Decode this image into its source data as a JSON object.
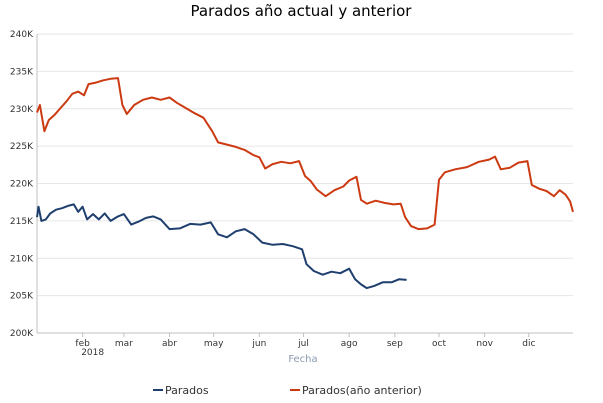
{
  "chart_data": {
    "type": "line",
    "title": "Parados año actual y anterior",
    "xlabel": "Fecha",
    "ylabel": "",
    "ylim": [
      200000,
      240000
    ],
    "yticks": [
      200000,
      205000,
      210000,
      215000,
      220000,
      225000,
      230000,
      235000,
      240000
    ],
    "ytick_labels": [
      "200K",
      "205K",
      "210K",
      "215K",
      "220K",
      "225K",
      "230K",
      "235K",
      "240K"
    ],
    "xlim": [
      "2018-01-01",
      "2018-12-31"
    ],
    "xticks": [
      {
        "date": "2018-02-01",
        "label": "feb",
        "sublabel": "2018"
      },
      {
        "date": "2018-03-01",
        "label": "mar",
        "sublabel": ""
      },
      {
        "date": "2018-04-01",
        "label": "abr",
        "sublabel": ""
      },
      {
        "date": "2018-05-01",
        "label": "may",
        "sublabel": ""
      },
      {
        "date": "2018-06-01",
        "label": "jun",
        "sublabel": ""
      },
      {
        "date": "2018-07-01",
        "label": "jul",
        "sublabel": ""
      },
      {
        "date": "2018-08-01",
        "label": "ago",
        "sublabel": ""
      },
      {
        "date": "2018-09-01",
        "label": "sep",
        "sublabel": ""
      },
      {
        "date": "2018-10-01",
        "label": "oct",
        "sublabel": ""
      },
      {
        "date": "2018-11-01",
        "label": "nov",
        "sublabel": ""
      },
      {
        "date": "2018-12-01",
        "label": "dic",
        "sublabel": ""
      }
    ],
    "grid": true,
    "legend_position": "bottom",
    "series": [
      {
        "name": "Parados",
        "color": "#1f3f6e",
        "points": [
          [
            "2018-01-01",
            215500
          ],
          [
            "2018-01-02",
            216900
          ],
          [
            "2018-01-04",
            215000
          ],
          [
            "2018-01-07",
            215200
          ],
          [
            "2018-01-10",
            216000
          ],
          [
            "2018-01-14",
            216500
          ],
          [
            "2018-01-18",
            216700
          ],
          [
            "2018-01-22",
            217000
          ],
          [
            "2018-01-26",
            217200
          ],
          [
            "2018-01-29",
            216200
          ],
          [
            "2018-02-01",
            216900
          ],
          [
            "2018-02-04",
            215200
          ],
          [
            "2018-02-08",
            215900
          ],
          [
            "2018-02-12",
            215200
          ],
          [
            "2018-02-16",
            216000
          ],
          [
            "2018-02-20",
            215000
          ],
          [
            "2018-02-25",
            215600
          ],
          [
            "2018-03-01",
            215900
          ],
          [
            "2018-03-06",
            214500
          ],
          [
            "2018-03-11",
            214900
          ],
          [
            "2018-03-16",
            215400
          ],
          [
            "2018-03-21",
            215600
          ],
          [
            "2018-03-26",
            215200
          ],
          [
            "2018-04-01",
            213900
          ],
          [
            "2018-04-08",
            214000
          ],
          [
            "2018-04-15",
            214600
          ],
          [
            "2018-04-22",
            214500
          ],
          [
            "2018-04-29",
            214800
          ],
          [
            "2018-05-04",
            213200
          ],
          [
            "2018-05-10",
            212800
          ],
          [
            "2018-05-16",
            213600
          ],
          [
            "2018-05-22",
            213900
          ],
          [
            "2018-05-28",
            213200
          ],
          [
            "2018-06-03",
            212100
          ],
          [
            "2018-06-10",
            211800
          ],
          [
            "2018-06-17",
            211900
          ],
          [
            "2018-06-24",
            211600
          ],
          [
            "2018-06-30",
            211200
          ],
          [
            "2018-07-03",
            209200
          ],
          [
            "2018-07-08",
            208300
          ],
          [
            "2018-07-14",
            207800
          ],
          [
            "2018-07-20",
            208200
          ],
          [
            "2018-07-26",
            208000
          ],
          [
            "2018-08-01",
            208600
          ],
          [
            "2018-08-05",
            207200
          ],
          [
            "2018-08-09",
            206500
          ],
          [
            "2018-08-13",
            206000
          ],
          [
            "2018-08-18",
            206300
          ],
          [
            "2018-08-24",
            206800
          ],
          [
            "2018-08-30",
            206800
          ],
          [
            "2018-09-04",
            207200
          ],
          [
            "2018-09-09",
            207100
          ]
        ]
      },
      {
        "name": "Parados(año anterior)",
        "color": "#cc3a12",
        "points": [
          [
            "2018-01-01",
            229500
          ],
          [
            "2018-01-03",
            230500
          ],
          [
            "2018-01-06",
            227000
          ],
          [
            "2018-01-09",
            228500
          ],
          [
            "2018-01-13",
            229200
          ],
          [
            "2018-01-17",
            230100
          ],
          [
            "2018-01-21",
            231000
          ],
          [
            "2018-01-25",
            232000
          ],
          [
            "2018-01-29",
            232300
          ],
          [
            "2018-02-02",
            231800
          ],
          [
            "2018-02-05",
            233300
          ],
          [
            "2018-02-10",
            233500
          ],
          [
            "2018-02-15",
            233800
          ],
          [
            "2018-02-20",
            234000
          ],
          [
            "2018-02-25",
            234100
          ],
          [
            "2018-02-28",
            230500
          ],
          [
            "2018-03-03",
            229300
          ],
          [
            "2018-03-08",
            230500
          ],
          [
            "2018-03-14",
            231200
          ],
          [
            "2018-03-20",
            231500
          ],
          [
            "2018-03-26",
            231200
          ],
          [
            "2018-04-01",
            231500
          ],
          [
            "2018-04-06",
            230800
          ],
          [
            "2018-04-12",
            230100
          ],
          [
            "2018-04-18",
            229400
          ],
          [
            "2018-04-24",
            228800
          ],
          [
            "2018-04-30",
            227000
          ],
          [
            "2018-05-04",
            225500
          ],
          [
            "2018-05-10",
            225200
          ],
          [
            "2018-05-16",
            224900
          ],
          [
            "2018-05-22",
            224500
          ],
          [
            "2018-05-28",
            223800
          ],
          [
            "2018-06-01",
            223500
          ],
          [
            "2018-06-05",
            222000
          ],
          [
            "2018-06-10",
            222600
          ],
          [
            "2018-06-16",
            222900
          ],
          [
            "2018-06-22",
            222700
          ],
          [
            "2018-06-28",
            223000
          ],
          [
            "2018-07-02",
            221000
          ],
          [
            "2018-07-06",
            220300
          ],
          [
            "2018-07-10",
            219200
          ],
          [
            "2018-07-16",
            218300
          ],
          [
            "2018-07-22",
            219100
          ],
          [
            "2018-07-28",
            219600
          ],
          [
            "2018-08-01",
            220400
          ],
          [
            "2018-08-06",
            220900
          ],
          [
            "2018-08-09",
            217800
          ],
          [
            "2018-08-13",
            217300
          ],
          [
            "2018-08-19",
            217700
          ],
          [
            "2018-08-25",
            217400
          ],
          [
            "2018-08-31",
            217200
          ],
          [
            "2018-09-05",
            217300
          ],
          [
            "2018-09-08",
            215500
          ],
          [
            "2018-09-12",
            214300
          ],
          [
            "2018-09-17",
            213900
          ],
          [
            "2018-09-23",
            214000
          ],
          [
            "2018-09-28",
            214500
          ],
          [
            "2018-10-01",
            220500
          ],
          [
            "2018-10-05",
            221500
          ],
          [
            "2018-10-12",
            221900
          ],
          [
            "2018-10-20",
            222200
          ],
          [
            "2018-10-28",
            222900
          ],
          [
            "2018-11-04",
            223200
          ],
          [
            "2018-11-08",
            223600
          ],
          [
            "2018-11-12",
            221900
          ],
          [
            "2018-11-18",
            222100
          ],
          [
            "2018-11-24",
            222800
          ],
          [
            "2018-11-30",
            223000
          ],
          [
            "2018-12-03",
            219800
          ],
          [
            "2018-12-08",
            219300
          ],
          [
            "2018-12-13",
            219000
          ],
          [
            "2018-12-18",
            218300
          ],
          [
            "2018-12-22",
            219100
          ],
          [
            "2018-12-26",
            218500
          ],
          [
            "2018-12-29",
            217600
          ],
          [
            "2018-12-31",
            216200
          ]
        ]
      }
    ]
  }
}
